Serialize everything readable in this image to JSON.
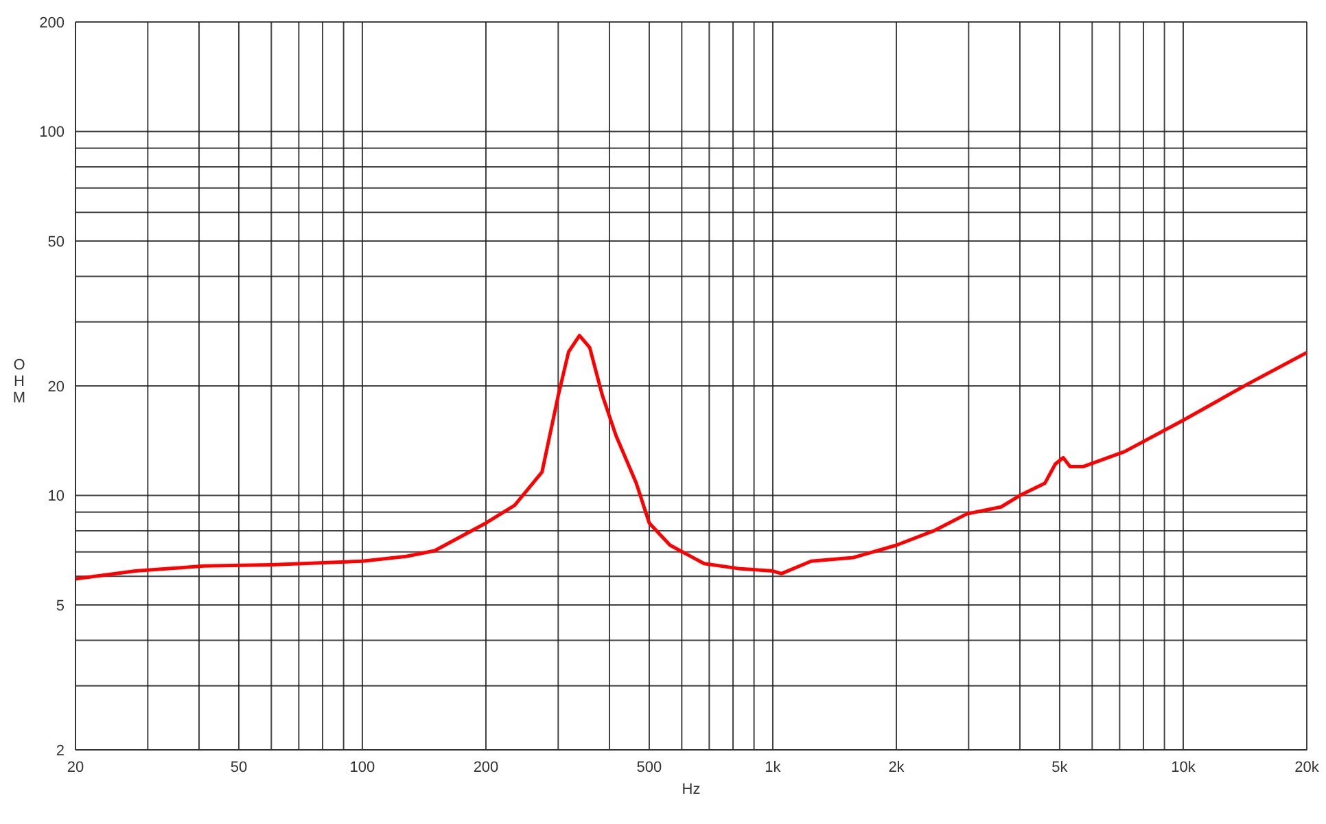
{
  "chart_data": {
    "type": "line",
    "xlabel": "Hz",
    "ylabel": "OHM",
    "log": "xy",
    "grid": true,
    "legend": false,
    "marker": "none",
    "line_style": "solid",
    "xlim": [
      20,
      20000
    ],
    "ylim": [
      2,
      200
    ],
    "xticks": [
      20,
      {
        "value": 30,
        "label": null
      },
      {
        "value": 40,
        "label": null
      },
      50,
      {
        "value": 60,
        "label": null
      },
      {
        "value": 70,
        "label": null
      },
      {
        "value": 80,
        "label": null
      },
      {
        "value": 90,
        "label": null
      },
      100,
      200,
      {
        "value": 300,
        "label": null
      },
      {
        "value": 400,
        "label": null
      },
      500,
      {
        "value": 600,
        "label": null
      },
      {
        "value": 700,
        "label": null
      },
      {
        "value": 800,
        "label": null
      },
      {
        "value": 900,
        "label": null
      },
      {
        "value": 1000,
        "label": "1k"
      },
      {
        "value": 2000,
        "label": "2k"
      },
      {
        "value": 3000,
        "label": null
      },
      {
        "value": 4000,
        "label": null
      },
      {
        "value": 5000,
        "label": "5k"
      },
      {
        "value": 6000,
        "label": null
      },
      {
        "value": 7000,
        "label": null
      },
      {
        "value": 8000,
        "label": null
      },
      {
        "value": 9000,
        "label": null
      },
      {
        "value": 10000,
        "label": "10k"
      },
      {
        "value": 20000,
        "label": "20k"
      }
    ],
    "yticks": [
      2,
      {
        "value": 3,
        "label": null
      },
      {
        "value": 4,
        "label": null
      },
      5,
      {
        "value": 6,
        "label": null
      },
      {
        "value": 7,
        "label": null
      },
      {
        "value": 8,
        "label": null
      },
      {
        "value": 9,
        "label": null
      },
      10,
      20,
      {
        "value": 30,
        "label": null
      },
      {
        "value": 40,
        "label": null
      },
      50,
      {
        "value": 60,
        "label": null
      },
      {
        "value": 70,
        "label": null
      },
      {
        "value": 80,
        "label": null
      },
      {
        "value": 90,
        "label": null
      },
      100,
      200
    ],
    "x": [
      20,
      28,
      41,
      60,
      100,
      128,
      150,
      200,
      235,
      274,
      300,
      318,
      338,
      358,
      384,
      415,
      465,
      500,
      562,
      680,
      823,
      1000,
      1050,
      1240,
      1570,
      2000,
      2470,
      2970,
      3600,
      4000,
      4600,
      4880,
      5100,
      5300,
      5700,
      7200,
      10000,
      14200,
      20000
    ],
    "series": [
      {
        "color": "#ff0000",
        "values": [
          5.9,
          6.2,
          6.4,
          6.45,
          6.6,
          6.8,
          7.05,
          8.4,
          9.4,
          11.6,
          18.8,
          24.8,
          27.5,
          25.5,
          18.9,
          14.6,
          10.8,
          8.4,
          7.3,
          6.5,
          6.3,
          6.2,
          6.1,
          6.6,
          6.75,
          7.3,
          8.0,
          8.9,
          9.3,
          10,
          10.8,
          12.2,
          12.7,
          12,
          12,
          13.2,
          16.1,
          20.1,
          24.7
        ]
      }
    ]
  }
}
